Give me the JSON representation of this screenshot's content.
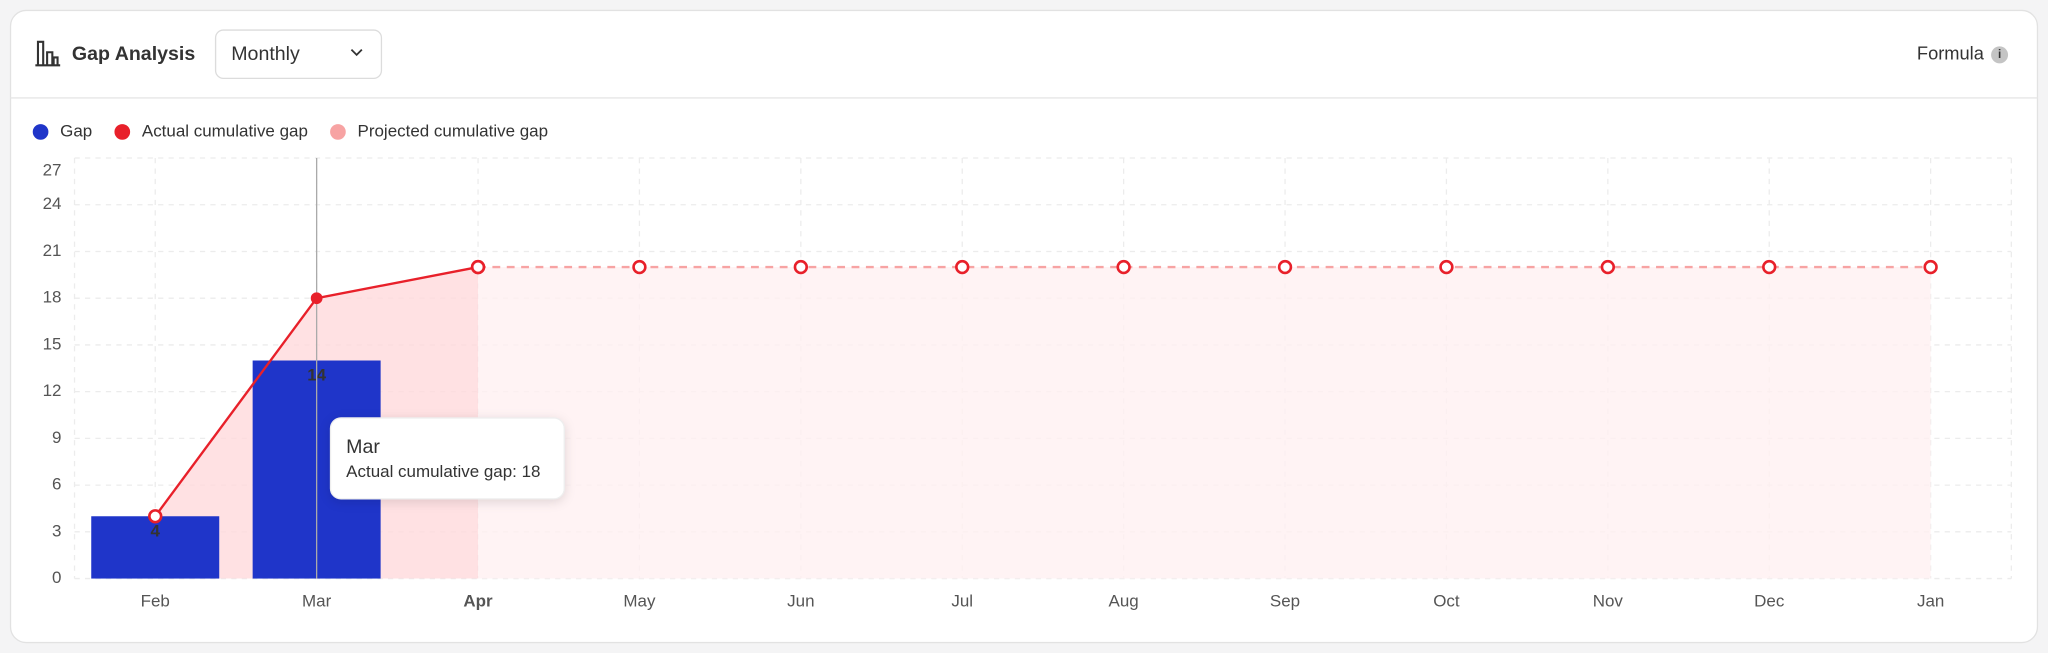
{
  "header": {
    "title": "Gap Analysis",
    "period": "Monthly",
    "formula": "Formula"
  },
  "chart_data": {
    "type": "bar-line",
    "categories": [
      "Feb",
      "Mar",
      "Apr",
      "May",
      "Jun",
      "Jul",
      "Aug",
      "Sep",
      "Oct",
      "Nov",
      "Dec",
      "Jan"
    ],
    "series": [
      {
        "name": "Gap",
        "type": "bar",
        "color": "#1f35c9",
        "values": [
          4,
          14,
          null,
          null,
          null,
          null,
          null,
          null,
          null,
          null,
          null,
          null
        ]
      },
      {
        "name": "Actual cumulative gap",
        "type": "line",
        "color": "#e8202a",
        "dashed": false,
        "area": "#ffd9dc",
        "values": [
          4,
          18,
          20,
          null,
          null,
          null,
          null,
          null,
          null,
          null,
          null,
          null
        ]
      },
      {
        "name": "Projected cumulative gap",
        "type": "line",
        "color": "#f7a3a3",
        "dashed": true,
        "area": "#fff0f1",
        "values": [
          null,
          null,
          20,
          20,
          20,
          20,
          20,
          20,
          20,
          20,
          20,
          20
        ]
      }
    ],
    "ylim": [
      0,
      27
    ],
    "yticks": [
      0,
      3,
      6,
      9,
      12,
      15,
      18,
      21,
      24,
      27
    ],
    "grid": true,
    "tooltip": {
      "title": "Mar",
      "text": "Actual cumulative gap: 18"
    }
  }
}
